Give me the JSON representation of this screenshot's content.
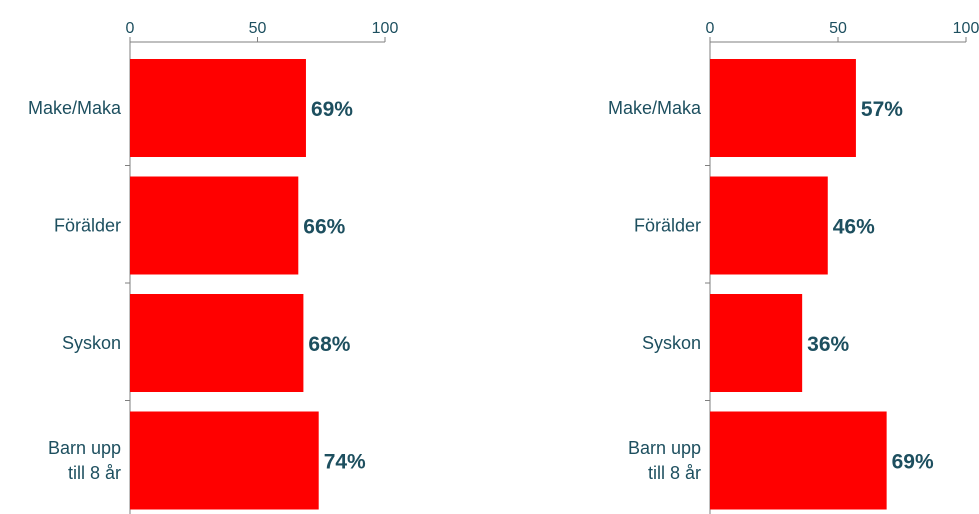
{
  "chart_data": [
    {
      "type": "bar",
      "orientation": "horizontal",
      "categories": [
        [
          "Make/Maka"
        ],
        [
          "Förälder"
        ],
        [
          "Syskon"
        ],
        [
          "Barn upp",
          "till 8 år"
        ]
      ],
      "values": [
        69,
        66,
        68,
        74
      ],
      "value_labels": [
        "69%",
        "66%",
        "68%",
        "74%"
      ],
      "xlim": [
        0,
        100
      ],
      "xticks": [
        0,
        50,
        100
      ],
      "xtick_labels": [
        "0",
        "50",
        "100"
      ],
      "x_axis_position": "top",
      "grid": false,
      "legend": "none"
    },
    {
      "type": "bar",
      "orientation": "horizontal",
      "categories": [
        [
          "Make/Maka"
        ],
        [
          "Förälder"
        ],
        [
          "Syskon"
        ],
        [
          "Barn upp",
          "till 8 år"
        ]
      ],
      "values": [
        57,
        46,
        36,
        69
      ],
      "value_labels": [
        "57%",
        "46%",
        "36%",
        "69%"
      ],
      "xlim": [
        0,
        100
      ],
      "xticks": [
        0,
        50,
        100
      ],
      "xtick_labels": [
        "0",
        "50",
        "100"
      ],
      "x_axis_position": "top",
      "grid": false,
      "legend": "none"
    }
  ],
  "colors": {
    "bar": "#ff0000",
    "text": "#1d4f5f",
    "axis": "#7f7f7f"
  }
}
